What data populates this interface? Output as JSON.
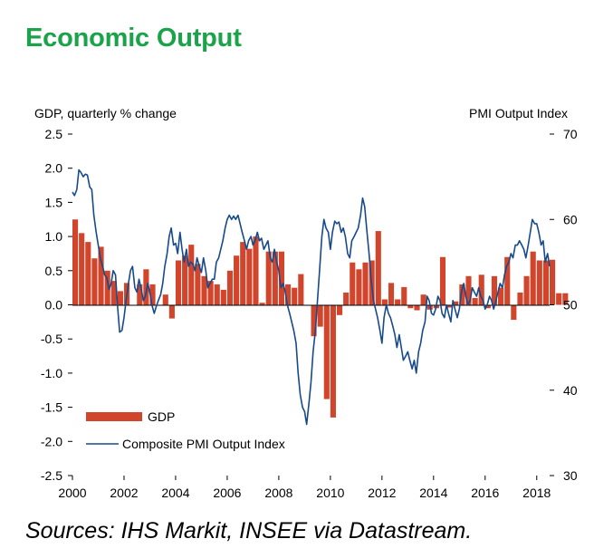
{
  "page": {
    "title": "Economic Output",
    "source": "Sources: IHS Markit, INSEE via Datastream."
  },
  "colors": {
    "title": "#1aa34a",
    "gdp": "#d0452b",
    "pmi": "#174a8b",
    "axis": "#000000"
  },
  "chart_data": {
    "type": "bar+line",
    "title": "Economic Output",
    "left_axis_label": "GDP, quarterly % change",
    "right_axis_label": "PMI Output  Index",
    "left_ylim": [
      -2.5,
      2.5
    ],
    "right_ylim": [
      30,
      70
    ],
    "left_ticks": [
      "2.5",
      "2.0",
      "1.5",
      "1.0",
      "0.5",
      "0.0",
      "-0.5",
      "-1.0",
      "-1.5",
      "-2.0",
      "-2.5"
    ],
    "right_ticks": [
      "70",
      "60",
      "50",
      "40",
      "30"
    ],
    "x_ticks": [
      "2000",
      "2002",
      "2004",
      "2006",
      "2008",
      "2010",
      "2012",
      "2014",
      "2016",
      "2018"
    ],
    "xlim": [
      2000,
      2018.5
    ],
    "legend": {
      "gdp": "GDP",
      "pmi": "Composite PMI Output Index"
    },
    "gdp_series": {
      "name": "GDP",
      "start": 2000.0,
      "step": 0.25,
      "values": [
        1.25,
        1.05,
        0.92,
        0.68,
        0.85,
        0.5,
        0.35,
        0.2,
        0.32,
        0.0,
        0.3,
        0.52,
        0.3,
        0.0,
        0.15,
        -0.2,
        0.65,
        0.72,
        0.88,
        0.6,
        0.42,
        0.35,
        0.3,
        0.22,
        0.5,
        0.72,
        0.92,
        0.82,
        1.0,
        0.03,
        0.78,
        0.78,
        0.78,
        0.3,
        0.25,
        0.45,
        0.0,
        -0.46,
        -0.32,
        -1.38,
        -1.65,
        -0.15,
        0.18,
        0.62,
        0.52,
        0.62,
        0.65,
        1.08,
        0.08,
        0.32,
        0.08,
        0.26,
        -0.05,
        -0.08,
        0.15,
        -0.07,
        -0.05,
        0.7,
        -0.04,
        0.05,
        0.3,
        0.42,
        0.1,
        0.44,
        -0.05,
        0.42,
        0.25,
        0.7,
        -0.22,
        0.18,
        0.42,
        0.78,
        0.65,
        0.65,
        0.66,
        0.17,
        0.17
      ]
    },
    "pmi_series": {
      "name": "Composite PMI Output Index",
      "points": [
        [
          2000.0,
          63.2
        ],
        [
          2000.08,
          62.8
        ],
        [
          2000.17,
          63.5
        ],
        [
          2000.25,
          65.8
        ],
        [
          2000.33,
          65.5
        ],
        [
          2000.42,
          65.0
        ],
        [
          2000.5,
          65.3
        ],
        [
          2000.58,
          65.2
        ],
        [
          2000.67,
          63.8
        ],
        [
          2000.75,
          63.5
        ],
        [
          2000.83,
          60.5
        ],
        [
          2000.92,
          58.5
        ],
        [
          2001.0,
          57.0
        ],
        [
          2001.08,
          55.5
        ],
        [
          2001.17,
          54.5
        ],
        [
          2001.25,
          53.5
        ],
        [
          2001.33,
          53.2
        ],
        [
          2001.42,
          51.8
        ],
        [
          2001.5,
          52.5
        ],
        [
          2001.58,
          54.0
        ],
        [
          2001.67,
          53.5
        ],
        [
          2001.75,
          49.8
        ],
        [
          2001.83,
          46.8
        ],
        [
          2001.92,
          47.0
        ],
        [
          2002.0,
          48.5
        ],
        [
          2002.08,
          50.5
        ],
        [
          2002.17,
          52.5
        ],
        [
          2002.25,
          54.0
        ],
        [
          2002.33,
          54.5
        ],
        [
          2002.42,
          52.0
        ],
        [
          2002.5,
          51.5
        ],
        [
          2002.58,
          53.0
        ],
        [
          2002.67,
          51.8
        ],
        [
          2002.75,
          50.5
        ],
        [
          2002.83,
          51.0
        ],
        [
          2002.92,
          52.5
        ],
        [
          2003.0,
          51.5
        ],
        [
          2003.08,
          50.0
        ],
        [
          2003.17,
          49.0
        ],
        [
          2003.25,
          49.8
        ],
        [
          2003.33,
          50.5
        ],
        [
          2003.42,
          51.2
        ],
        [
          2003.5,
          52.5
        ],
        [
          2003.58,
          54.5
        ],
        [
          2003.67,
          56.0
        ],
        [
          2003.75,
          58.0
        ],
        [
          2003.83,
          59.0
        ],
        [
          2003.92,
          57.0
        ],
        [
          2004.0,
          57.2
        ],
        [
          2004.08,
          56.0
        ],
        [
          2004.17,
          58.5
        ],
        [
          2004.25,
          56.5
        ],
        [
          2004.33,
          55.0
        ],
        [
          2004.42,
          56.5
        ],
        [
          2004.5,
          54.5
        ],
        [
          2004.58,
          55.0
        ],
        [
          2004.67,
          54.8
        ],
        [
          2004.75,
          54.0
        ],
        [
          2004.83,
          55.5
        ],
        [
          2004.92,
          54.5
        ],
        [
          2005.0,
          53.8
        ],
        [
          2005.08,
          55.5
        ],
        [
          2005.17,
          54.0
        ],
        [
          2005.25,
          52.0
        ],
        [
          2005.33,
          52.5
        ],
        [
          2005.42,
          53.0
        ],
        [
          2005.5,
          53.0
        ],
        [
          2005.58,
          55.0
        ],
        [
          2005.67,
          55.5
        ],
        [
          2005.75,
          56.5
        ],
        [
          2005.83,
          57.5
        ],
        [
          2005.92,
          59.0
        ],
        [
          2006.0,
          60.0
        ],
        [
          2006.08,
          60.5
        ],
        [
          2006.17,
          60.0
        ],
        [
          2006.25,
          60.4
        ],
        [
          2006.33,
          60.0
        ],
        [
          2006.42,
          60.5
        ],
        [
          2006.5,
          59.5
        ],
        [
          2006.58,
          58.5
        ],
        [
          2006.67,
          57.5
        ],
        [
          2006.75,
          56.5
        ],
        [
          2006.83,
          57.5
        ],
        [
          2006.92,
          58.0
        ],
        [
          2007.0,
          57.0
        ],
        [
          2007.08,
          57.5
        ],
        [
          2007.17,
          58.5
        ],
        [
          2007.25,
          57.5
        ],
        [
          2007.33,
          57.8
        ],
        [
          2007.42,
          56.5
        ],
        [
          2007.5,
          57.0
        ],
        [
          2007.58,
          57.5
        ],
        [
          2007.67,
          55.5
        ],
        [
          2007.75,
          55.0
        ],
        [
          2007.83,
          56.5
        ],
        [
          2007.92,
          55.0
        ],
        [
          2008.0,
          54.0
        ],
        [
          2008.08,
          52.0
        ],
        [
          2008.17,
          52.5
        ],
        [
          2008.25,
          51.5
        ],
        [
          2008.33,
          50.0
        ],
        [
          2008.42,
          49.0
        ],
        [
          2008.5,
          48.0
        ],
        [
          2008.58,
          47.0
        ],
        [
          2008.67,
          45.5
        ],
        [
          2008.75,
          42.0
        ],
        [
          2008.83,
          39.5
        ],
        [
          2008.92,
          38.0
        ],
        [
          2009.0,
          37.5
        ],
        [
          2009.08,
          36.0
        ],
        [
          2009.17,
          38.5
        ],
        [
          2009.25,
          41.0
        ],
        [
          2009.33,
          44.5
        ],
        [
          2009.42,
          47.0
        ],
        [
          2009.5,
          50.5
        ],
        [
          2009.58,
          54.0
        ],
        [
          2009.67,
          58.0
        ],
        [
          2009.75,
          60.0
        ],
        [
          2009.83,
          59.0
        ],
        [
          2009.92,
          58.5
        ],
        [
          2010.0,
          56.5
        ],
        [
          2010.08,
          58.5
        ],
        [
          2010.17,
          59.8
        ],
        [
          2010.25,
          59.5
        ],
        [
          2010.33,
          59.7
        ],
        [
          2010.42,
          58.5
        ],
        [
          2010.5,
          59.0
        ],
        [
          2010.58,
          58.0
        ],
        [
          2010.67,
          56.0
        ],
        [
          2010.75,
          55.5
        ],
        [
          2010.83,
          57.5
        ],
        [
          2010.92,
          58.0
        ],
        [
          2011.0,
          58.5
        ],
        [
          2011.08,
          59.0
        ],
        [
          2011.17,
          60.5
        ],
        [
          2011.25,
          62.5
        ],
        [
          2011.33,
          61.5
        ],
        [
          2011.42,
          58.5
        ],
        [
          2011.5,
          56.0
        ],
        [
          2011.58,
          53.0
        ],
        [
          2011.67,
          50.5
        ],
        [
          2011.75,
          49.5
        ],
        [
          2011.83,
          48.5
        ],
        [
          2011.92,
          47.0
        ],
        [
          2012.0,
          45.5
        ],
        [
          2012.08,
          48.5
        ],
        [
          2012.17,
          50.0
        ],
        [
          2012.25,
          49.0
        ],
        [
          2012.33,
          48.5
        ],
        [
          2012.42,
          47.5
        ],
        [
          2012.5,
          46.5
        ],
        [
          2012.58,
          45.0
        ],
        [
          2012.67,
          46.5
        ],
        [
          2012.75,
          45.0
        ],
        [
          2012.83,
          43.5
        ],
        [
          2012.92,
          44.0
        ],
        [
          2013.0,
          44.5
        ],
        [
          2013.08,
          43.5
        ],
        [
          2013.17,
          42.5
        ],
        [
          2013.25,
          43.5
        ],
        [
          2013.33,
          42.0
        ],
        [
          2013.42,
          44.5
        ],
        [
          2013.5,
          45.5
        ],
        [
          2013.58,
          47.0
        ],
        [
          2013.67,
          48.0
        ],
        [
          2013.75,
          51.0
        ],
        [
          2013.83,
          50.5
        ],
        [
          2013.92,
          49.0
        ],
        [
          2014.0,
          48.8
        ],
        [
          2014.08,
          49.5
        ],
        [
          2014.17,
          51.0
        ],
        [
          2014.25,
          50.5
        ],
        [
          2014.33,
          49.0
        ],
        [
          2014.42,
          48.5
        ],
        [
          2014.5,
          50.0
        ],
        [
          2014.58,
          49.0
        ],
        [
          2014.67,
          48.0
        ],
        [
          2014.75,
          50.5
        ],
        [
          2014.83,
          49.5
        ],
        [
          2014.92,
          48.5
        ],
        [
          2015.0,
          49.5
        ],
        [
          2015.08,
          51.5
        ],
        [
          2015.17,
          52.5
        ],
        [
          2015.25,
          51.0
        ],
        [
          2015.33,
          50.0
        ],
        [
          2015.42,
          50.5
        ],
        [
          2015.5,
          52.0
        ],
        [
          2015.58,
          51.5
        ],
        [
          2015.67,
          51.0
        ],
        [
          2015.75,
          52.0
        ],
        [
          2015.83,
          51.0
        ],
        [
          2015.92,
          50.5
        ],
        [
          2016.0,
          49.5
        ],
        [
          2016.08,
          50.0
        ],
        [
          2016.17,
          51.0
        ],
        [
          2016.25,
          50.5
        ],
        [
          2016.33,
          49.5
        ],
        [
          2016.42,
          50.5
        ],
        [
          2016.5,
          51.5
        ],
        [
          2016.58,
          52.5
        ],
        [
          2016.67,
          52.0
        ],
        [
          2016.75,
          53.5
        ],
        [
          2016.83,
          54.5
        ],
        [
          2016.92,
          55.0
        ],
        [
          2017.0,
          56.0
        ],
        [
          2017.08,
          55.5
        ],
        [
          2017.17,
          57.0
        ],
        [
          2017.25,
          57.0
        ],
        [
          2017.33,
          57.5
        ],
        [
          2017.42,
          57.0
        ],
        [
          2017.5,
          56.5
        ],
        [
          2017.58,
          55.5
        ],
        [
          2017.67,
          57.0
        ],
        [
          2017.75,
          58.5
        ],
        [
          2017.83,
          60.0
        ],
        [
          2017.92,
          59.5
        ],
        [
          2018.0,
          59.5
        ],
        [
          2018.08,
          58.5
        ],
        [
          2018.17,
          57.0
        ],
        [
          2018.25,
          57.5
        ],
        [
          2018.33,
          55.0
        ],
        [
          2018.42,
          56.0
        ],
        [
          2018.5,
          54.5
        ]
      ]
    }
  }
}
